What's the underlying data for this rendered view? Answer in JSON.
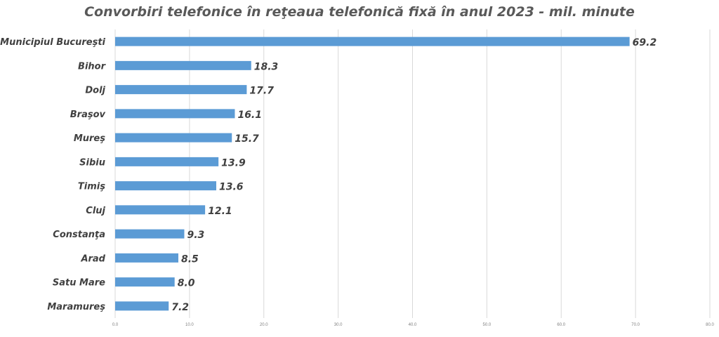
{
  "chart_data": {
    "type": "bar",
    "orientation": "horizontal",
    "title": "Convorbiri telefonice în reţeaua telefonică fixă în anul 2023 - mil. minute",
    "categories": [
      "Municipiul Bucureşti",
      "Bihor",
      "Dolj",
      "Braşov",
      "Mureş",
      "Sibiu",
      "Timiş",
      "Cluj",
      "Constanţa",
      "Arad",
      "Satu Mare",
      "Maramureş"
    ],
    "values": [
      69.2,
      18.3,
      17.7,
      16.1,
      15.7,
      13.9,
      13.6,
      12.1,
      9.3,
      8.5,
      8.0,
      7.2
    ],
    "data_labels": [
      "69.2",
      "18.3",
      "17.7",
      "16.1",
      "15.7",
      "13.9",
      "13.6",
      "12.1",
      "9.3",
      "8.5",
      "8.0",
      "7.2"
    ],
    "xlim": [
      0,
      80
    ],
    "x_ticks": [
      "0.0",
      "10.0",
      "20.0",
      "30.0",
      "40.0",
      "50.0",
      "60.0",
      "70.0",
      "80.0"
    ],
    "grid": "vertical",
    "legend": "none",
    "colors": {
      "bar": "#5b9bd5",
      "grid": "#d9d9d9",
      "text": "#404040",
      "tick": "#7f7f7f"
    }
  }
}
